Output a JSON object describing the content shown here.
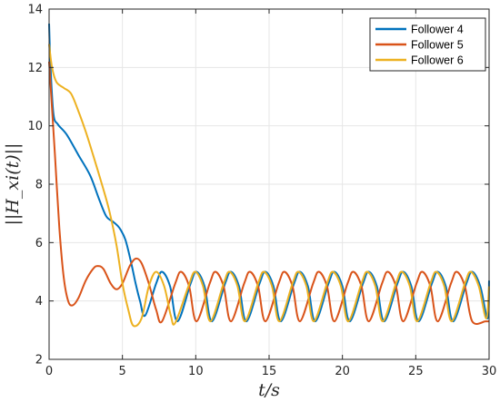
{
  "chart_data": {
    "type": "line",
    "title": "",
    "xlabel": "t/s",
    "ylabel": "||H_xi(t)||",
    "xlim": [
      0,
      30
    ],
    "ylim": [
      2,
      14
    ],
    "x_ticks": [
      0,
      5,
      10,
      15,
      20,
      25,
      30
    ],
    "y_ticks": [
      2,
      4,
      6,
      8,
      10,
      12,
      14
    ],
    "grid": true,
    "legend_position": "top-right",
    "series": [
      {
        "name": "Follower 4",
        "color": "#0072BD",
        "points": [
          [
            0,
            13.5
          ],
          [
            0.1,
            12.0
          ],
          [
            0.3,
            10.4
          ],
          [
            0.6,
            10.05
          ],
          [
            1.2,
            9.7
          ],
          [
            2.0,
            9.0
          ],
          [
            2.8,
            8.3
          ],
          [
            3.4,
            7.5
          ],
          [
            3.9,
            6.9
          ],
          [
            4.4,
            6.7
          ],
          [
            4.8,
            6.5
          ],
          [
            5.2,
            6.1
          ],
          [
            5.6,
            5.3
          ],
          [
            5.9,
            4.6
          ],
          [
            6.2,
            4.0
          ],
          [
            6.55,
            3.5
          ],
          [
            7.3,
            4.6
          ],
          [
            7.7,
            5.0
          ],
          [
            8.25,
            4.5
          ],
          [
            8.75,
            3.3
          ],
          [
            9.65,
            4.6
          ],
          [
            10.05,
            5.0
          ],
          [
            10.6,
            4.5
          ],
          [
            11.1,
            3.3
          ],
          [
            12.0,
            4.6
          ],
          [
            12.4,
            5.0
          ],
          [
            12.95,
            4.5
          ],
          [
            13.45,
            3.3
          ],
          [
            14.35,
            4.6
          ],
          [
            14.75,
            5.0
          ],
          [
            15.3,
            4.5
          ],
          [
            15.8,
            3.3
          ],
          [
            16.7,
            4.6
          ],
          [
            17.1,
            5.0
          ],
          [
            17.65,
            4.5
          ],
          [
            18.15,
            3.3
          ],
          [
            19.05,
            4.6
          ],
          [
            19.45,
            5.0
          ],
          [
            20.0,
            4.5
          ],
          [
            20.5,
            3.3
          ],
          [
            21.4,
            4.6
          ],
          [
            21.8,
            5.0
          ],
          [
            22.35,
            4.5
          ],
          [
            22.85,
            3.3
          ],
          [
            23.75,
            4.6
          ],
          [
            24.15,
            5.0
          ],
          [
            24.7,
            4.5
          ],
          [
            25.2,
            3.3
          ],
          [
            26.1,
            4.6
          ],
          [
            26.5,
            5.0
          ],
          [
            27.05,
            4.5
          ],
          [
            27.55,
            3.3
          ],
          [
            28.45,
            4.6
          ],
          [
            28.85,
            5.0
          ],
          [
            29.4,
            4.5
          ],
          [
            29.9,
            3.4
          ],
          [
            30,
            4.7
          ]
        ]
      },
      {
        "name": "Follower 5",
        "color": "#D95319",
        "points": [
          [
            0,
            12.2
          ],
          [
            0.15,
            11.0
          ],
          [
            0.4,
            9.0
          ],
          [
            0.7,
            6.5
          ],
          [
            1.0,
            4.8
          ],
          [
            1.3,
            4.0
          ],
          [
            1.6,
            3.85
          ],
          [
            2.0,
            4.1
          ],
          [
            2.5,
            4.7
          ],
          [
            3.0,
            5.1
          ],
          [
            3.3,
            5.2
          ],
          [
            3.7,
            5.1
          ],
          [
            4.2,
            4.6
          ],
          [
            4.6,
            4.4
          ],
          [
            5.0,
            4.6
          ],
          [
            5.5,
            5.2
          ],
          [
            5.9,
            5.45
          ],
          [
            6.3,
            5.3
          ],
          [
            6.8,
            4.6
          ],
          [
            7.3,
            3.7
          ],
          [
            7.7,
            3.3
          ],
          [
            8.6,
            4.6
          ],
          [
            9.0,
            5.0
          ],
          [
            9.55,
            4.5
          ],
          [
            10.05,
            3.3
          ],
          [
            10.95,
            4.6
          ],
          [
            11.35,
            5.0
          ],
          [
            11.9,
            4.5
          ],
          [
            12.4,
            3.3
          ],
          [
            13.3,
            4.6
          ],
          [
            13.7,
            5.0
          ],
          [
            14.25,
            4.5
          ],
          [
            14.75,
            3.3
          ],
          [
            15.65,
            4.6
          ],
          [
            16.05,
            5.0
          ],
          [
            16.6,
            4.5
          ],
          [
            17.1,
            3.3
          ],
          [
            18.0,
            4.6
          ],
          [
            18.4,
            5.0
          ],
          [
            18.95,
            4.5
          ],
          [
            19.45,
            3.3
          ],
          [
            20.35,
            4.6
          ],
          [
            20.75,
            5.0
          ],
          [
            21.3,
            4.5
          ],
          [
            21.8,
            3.3
          ],
          [
            22.7,
            4.6
          ],
          [
            23.1,
            5.0
          ],
          [
            23.65,
            4.5
          ],
          [
            24.15,
            3.3
          ],
          [
            25.05,
            4.6
          ],
          [
            25.45,
            5.0
          ],
          [
            26.0,
            4.5
          ],
          [
            26.5,
            3.3
          ],
          [
            27.4,
            4.6
          ],
          [
            27.8,
            5.0
          ],
          [
            28.35,
            4.5
          ],
          [
            28.85,
            3.3
          ],
          [
            29.75,
            3.3
          ],
          [
            30,
            3.3
          ]
        ]
      },
      {
        "name": "Follower 6",
        "color": "#EDB120",
        "points": [
          [
            0,
            12.8
          ],
          [
            0.2,
            12.0
          ],
          [
            0.5,
            11.5
          ],
          [
            1.0,
            11.3
          ],
          [
            1.5,
            11.1
          ],
          [
            2.0,
            10.5
          ],
          [
            2.5,
            9.8
          ],
          [
            3.0,
            9.0
          ],
          [
            3.6,
            8.0
          ],
          [
            4.1,
            7.1
          ],
          [
            4.6,
            5.9
          ],
          [
            5.0,
            4.6
          ],
          [
            5.4,
            3.7
          ],
          [
            5.75,
            3.15
          ],
          [
            6.3,
            3.4
          ],
          [
            6.8,
            4.5
          ],
          [
            7.3,
            5.0
          ],
          [
            7.85,
            4.5
          ],
          [
            8.3,
            3.5
          ],
          [
            8.6,
            3.25
          ],
          [
            9.5,
            4.5
          ],
          [
            9.95,
            5.0
          ],
          [
            10.5,
            4.5
          ],
          [
            11.0,
            3.3
          ],
          [
            11.9,
            4.6
          ],
          [
            12.3,
            5.0
          ],
          [
            12.85,
            4.5
          ],
          [
            13.35,
            3.3
          ],
          [
            14.25,
            4.6
          ],
          [
            14.65,
            5.0
          ],
          [
            15.2,
            4.5
          ],
          [
            15.7,
            3.3
          ],
          [
            16.6,
            4.6
          ],
          [
            17.0,
            5.0
          ],
          [
            17.55,
            4.5
          ],
          [
            18.05,
            3.3
          ],
          [
            18.95,
            4.6
          ],
          [
            19.35,
            5.0
          ],
          [
            19.9,
            4.5
          ],
          [
            20.4,
            3.3
          ],
          [
            21.3,
            4.6
          ],
          [
            21.7,
            5.0
          ],
          [
            22.25,
            4.5
          ],
          [
            22.75,
            3.3
          ],
          [
            23.65,
            4.6
          ],
          [
            24.05,
            5.0
          ],
          [
            24.6,
            4.5
          ],
          [
            25.1,
            3.3
          ],
          [
            26.0,
            4.6
          ],
          [
            26.4,
            5.0
          ],
          [
            26.95,
            4.5
          ],
          [
            27.45,
            3.3
          ],
          [
            28.35,
            4.6
          ],
          [
            28.75,
            5.0
          ],
          [
            29.3,
            4.5
          ],
          [
            29.8,
            3.4
          ],
          [
            30,
            4.5
          ]
        ]
      }
    ]
  }
}
